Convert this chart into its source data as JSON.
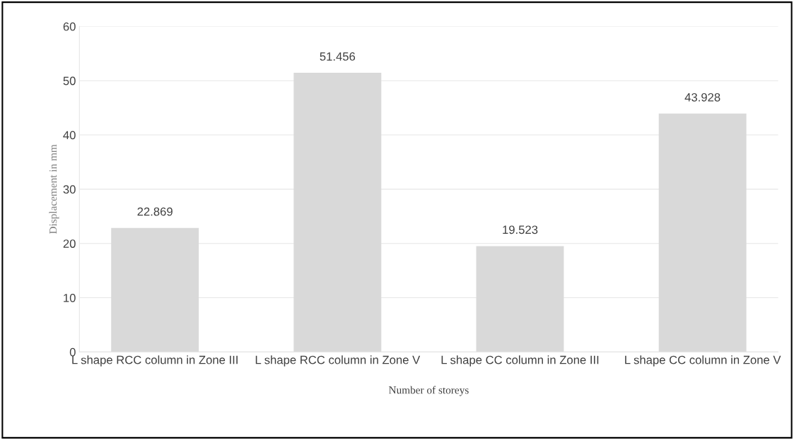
{
  "chart_data": {
    "type": "bar",
    "xlabel": "Number of storeys",
    "ylabel": "Displacement in mm",
    "categories": [
      "L shape RCC column in Zone III",
      "L shape RCC column in Zone V",
      "L shape CC column in Zone III",
      "L shape CC column in Zone V"
    ],
    "values": [
      22.869,
      51.456,
      19.523,
      43.928
    ],
    "color": "#d9d9d9",
    "ylim": [
      0,
      60
    ],
    "yticks": [
      0,
      10,
      20,
      30,
      40,
      50,
      60
    ],
    "grid": "y",
    "data_labels": true
  }
}
